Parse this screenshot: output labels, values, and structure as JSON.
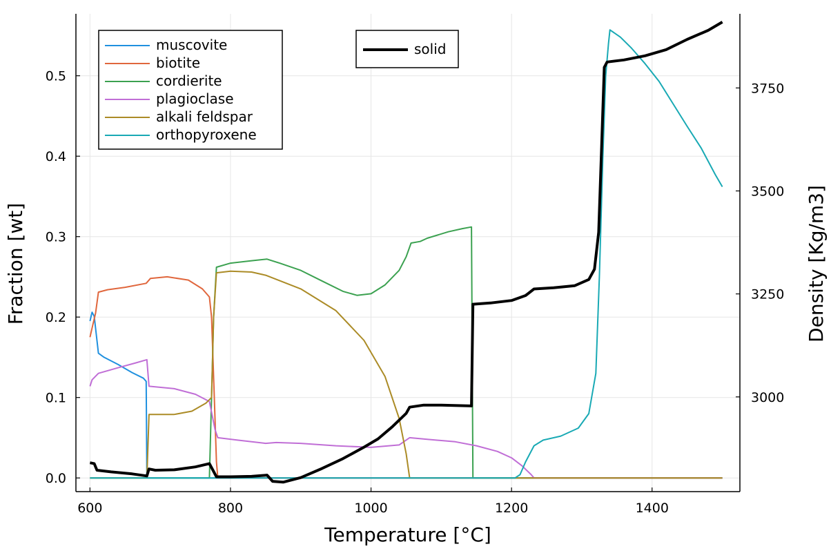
{
  "chart_data": {
    "type": "line",
    "xlabel": "Temperature [°C]",
    "ylabel": "Fraction [wt]",
    "y2label": "Density [Kg/m3]",
    "xlim": [
      580,
      1525
    ],
    "ylim": [
      -0.017,
      0.577
    ],
    "y2lim": [
      2770,
      3930
    ],
    "grid": true,
    "x_ticks": [
      600,
      800,
      1000,
      1200,
      1400
    ],
    "x_tick_labels": [
      "600",
      "800",
      "1000",
      "1200",
      "1400"
    ],
    "y_ticks": [
      0.0,
      0.1,
      0.2,
      0.3,
      0.4,
      0.5
    ],
    "y_tick_labels": [
      "0.0",
      "0.1",
      "0.2",
      "0.3",
      "0.4",
      "0.5"
    ],
    "y2_ticks": [
      3000,
      3250,
      3500,
      3750
    ],
    "y2_tick_labels": [
      "3000",
      "3250",
      "3500",
      "3750"
    ],
    "legend_left": {
      "position": "top-left",
      "entries": [
        "muscovite",
        "biotite",
        "cordierite",
        "plagioclase",
        "alkali feldspar",
        "orthopyroxene"
      ]
    },
    "legend_right": {
      "position": "top-center",
      "entries": [
        "solid"
      ]
    },
    "series": [
      {
        "name": "muscovite",
        "color": "#1f90df",
        "axis": "left",
        "points": [
          [
            600,
            0.195
          ],
          [
            603,
            0.206
          ],
          [
            606,
            0.201
          ],
          [
            612,
            0.155
          ],
          [
            620,
            0.15
          ],
          [
            640,
            0.141
          ],
          [
            660,
            0.131
          ],
          [
            676,
            0.124
          ],
          [
            680,
            0.12
          ],
          [
            681,
            0.0
          ],
          [
            1500,
            0.0
          ]
        ]
      },
      {
        "name": "biotite",
        "color": "#e0663c",
        "axis": "left",
        "points": [
          [
            600,
            0.175
          ],
          [
            604,
            0.19
          ],
          [
            608,
            0.205
          ],
          [
            612,
            0.231
          ],
          [
            625,
            0.234
          ],
          [
            650,
            0.237
          ],
          [
            680,
            0.242
          ],
          [
            686,
            0.248
          ],
          [
            710,
            0.25
          ],
          [
            740,
            0.246
          ],
          [
            760,
            0.235
          ],
          [
            770,
            0.225
          ],
          [
            773,
            0.2
          ],
          [
            777,
            0.1
          ],
          [
            780,
            0.02
          ],
          [
            782,
            0.0
          ],
          [
            1500,
            0.0
          ]
        ]
      },
      {
        "name": "cordierite",
        "color": "#3ba150",
        "axis": "left",
        "points": [
          [
            600,
            0.0
          ],
          [
            770,
            0.0
          ],
          [
            773,
            0.1
          ],
          [
            776,
            0.2
          ],
          [
            780,
            0.262
          ],
          [
            800,
            0.267
          ],
          [
            830,
            0.27
          ],
          [
            852,
            0.272
          ],
          [
            870,
            0.267
          ],
          [
            900,
            0.258
          ],
          [
            930,
            0.245
          ],
          [
            960,
            0.232
          ],
          [
            980,
            0.227
          ],
          [
            1000,
            0.229
          ],
          [
            1020,
            0.24
          ],
          [
            1040,
            0.258
          ],
          [
            1050,
            0.275
          ],
          [
            1057,
            0.292
          ],
          [
            1070,
            0.294
          ],
          [
            1080,
            0.298
          ],
          [
            1110,
            0.306
          ],
          [
            1130,
            0.31
          ],
          [
            1143,
            0.312
          ],
          [
            1145,
            0.0
          ],
          [
            1500,
            0.0
          ]
        ]
      },
      {
        "name": "plagioclase",
        "color": "#c06ed6",
        "axis": "left",
        "points": [
          [
            600,
            0.114
          ],
          [
            603,
            0.122
          ],
          [
            612,
            0.13
          ],
          [
            640,
            0.137
          ],
          [
            665,
            0.143
          ],
          [
            681,
            0.147
          ],
          [
            684,
            0.114
          ],
          [
            720,
            0.111
          ],
          [
            750,
            0.104
          ],
          [
            770,
            0.095
          ],
          [
            778,
            0.06
          ],
          [
            782,
            0.05
          ],
          [
            810,
            0.047
          ],
          [
            850,
            0.043
          ],
          [
            865,
            0.044
          ],
          [
            900,
            0.043
          ],
          [
            950,
            0.04
          ],
          [
            1000,
            0.038
          ],
          [
            1040,
            0.041
          ],
          [
            1055,
            0.05
          ],
          [
            1080,
            0.048
          ],
          [
            1120,
            0.045
          ],
          [
            1150,
            0.04
          ],
          [
            1180,
            0.033
          ],
          [
            1200,
            0.025
          ],
          [
            1215,
            0.015
          ],
          [
            1228,
            0.004
          ],
          [
            1232,
            0.0
          ],
          [
            1500,
            0.0
          ]
        ]
      },
      {
        "name": "alkali feldspar",
        "color": "#ab8b26",
        "axis": "left",
        "points": [
          [
            600,
            0.0
          ],
          [
            681,
            0.0
          ],
          [
            684,
            0.079
          ],
          [
            720,
            0.079
          ],
          [
            745,
            0.083
          ],
          [
            765,
            0.093
          ],
          [
            773,
            0.1
          ],
          [
            776,
            0.2
          ],
          [
            780,
            0.255
          ],
          [
            800,
            0.257
          ],
          [
            830,
            0.256
          ],
          [
            850,
            0.252
          ],
          [
            900,
            0.235
          ],
          [
            950,
            0.208
          ],
          [
            990,
            0.171
          ],
          [
            1020,
            0.126
          ],
          [
            1040,
            0.074
          ],
          [
            1050,
            0.03
          ],
          [
            1055,
            0.0
          ],
          [
            1500,
            0.0
          ]
        ]
      },
      {
        "name": "orthopyroxene",
        "color": "#18a9b4",
        "axis": "left",
        "points": [
          [
            600,
            0.0
          ],
          [
            1205,
            0.0
          ],
          [
            1212,
            0.004
          ],
          [
            1220,
            0.02
          ],
          [
            1232,
            0.04
          ],
          [
            1245,
            0.047
          ],
          [
            1270,
            0.052
          ],
          [
            1295,
            0.062
          ],
          [
            1310,
            0.08
          ],
          [
            1320,
            0.13
          ],
          [
            1325,
            0.25
          ],
          [
            1330,
            0.4
          ],
          [
            1334,
            0.5
          ],
          [
            1338,
            0.54
          ],
          [
            1340,
            0.557
          ],
          [
            1355,
            0.548
          ],
          [
            1370,
            0.535
          ],
          [
            1390,
            0.515
          ],
          [
            1410,
            0.493
          ],
          [
            1430,
            0.465
          ],
          [
            1450,
            0.437
          ],
          [
            1470,
            0.41
          ],
          [
            1490,
            0.377
          ],
          [
            1500,
            0.362
          ]
        ]
      },
      {
        "name": "solid",
        "color": "#000000",
        "axis": "right",
        "points": [
          [
            600,
            2840
          ],
          [
            606,
            2838
          ],
          [
            610,
            2822
          ],
          [
            630,
            2818
          ],
          [
            660,
            2813
          ],
          [
            681,
            2808
          ],
          [
            684,
            2825
          ],
          [
            693,
            2822
          ],
          [
            720,
            2823
          ],
          [
            750,
            2830
          ],
          [
            770,
            2838
          ],
          [
            780,
            2806
          ],
          [
            800,
            2806
          ],
          [
            830,
            2807
          ],
          [
            852,
            2810
          ],
          [
            860,
            2795
          ],
          [
            875,
            2793
          ],
          [
            900,
            2804
          ],
          [
            930,
            2826
          ],
          [
            960,
            2850
          ],
          [
            990,
            2878
          ],
          [
            1010,
            2898
          ],
          [
            1030,
            2927
          ],
          [
            1050,
            2960
          ],
          [
            1055,
            2975
          ],
          [
            1075,
            2980
          ],
          [
            1100,
            2980
          ],
          [
            1143,
            2978
          ],
          [
            1145,
            3225
          ],
          [
            1170,
            3228
          ],
          [
            1200,
            3234
          ],
          [
            1220,
            3246
          ],
          [
            1232,
            3262
          ],
          [
            1260,
            3265
          ],
          [
            1290,
            3270
          ],
          [
            1310,
            3285
          ],
          [
            1318,
            3310
          ],
          [
            1324,
            3400
          ],
          [
            1328,
            3600
          ],
          [
            1332,
            3800
          ],
          [
            1336,
            3813
          ],
          [
            1360,
            3818
          ],
          [
            1390,
            3828
          ],
          [
            1420,
            3843
          ],
          [
            1450,
            3868
          ],
          [
            1480,
            3890
          ],
          [
            1500,
            3910
          ]
        ]
      }
    ]
  }
}
